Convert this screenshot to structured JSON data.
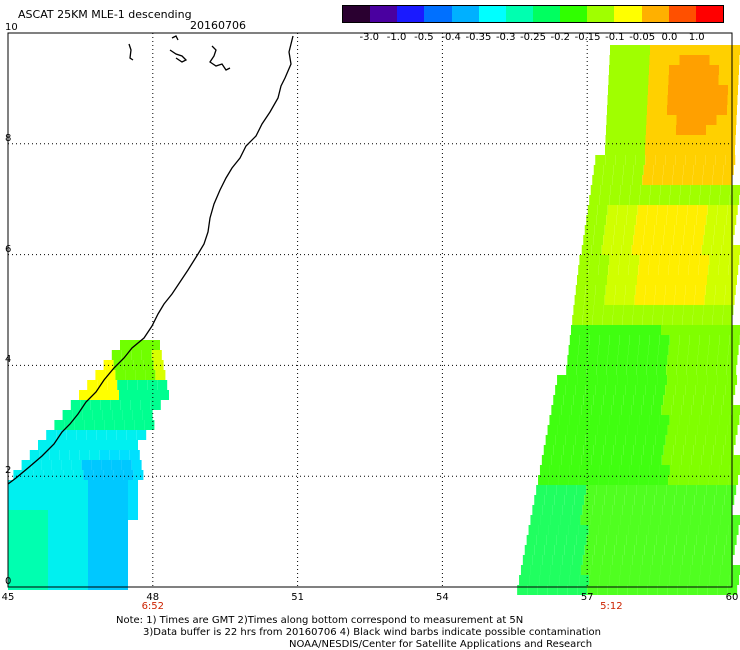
{
  "header": {
    "title": "ASCAT 25KM MLE-1 descending",
    "date": "20160706"
  },
  "colorbar": {
    "labels": [
      "-3.0",
      "-1.0",
      "-0.5",
      "-0.4",
      "-0.35",
      "-0.3",
      "-0.25",
      "-0.2",
      "-0.15",
      "-0.1",
      "-0.05",
      "0.0",
      "1.0"
    ],
    "colors": [
      "#2a0030",
      "#4a00a0",
      "#1a1aff",
      "#0070ff",
      "#00b0ff",
      "#00ffff",
      "#00ffb0",
      "#00ff60",
      "#30ff00",
      "#a0ff00",
      "#ffff00",
      "#ffb000",
      "#ff5000",
      "#ff0000"
    ]
  },
  "axes": {
    "x_ticks": [
      "45",
      "48",
      "51",
      "54",
      "57",
      "60"
    ],
    "y_ticks": [
      "0",
      "2",
      "4",
      "6",
      "8",
      "10"
    ],
    "x_range": [
      45,
      60
    ],
    "y_range": [
      0,
      10
    ]
  },
  "passes": [
    {
      "time": "6:52",
      "lon": 48
    },
    {
      "time": "5:12",
      "lon": 57.5
    }
  ],
  "notes": {
    "line1": "Note: 1) Times are GMT 2)Times along bottom correspond to measurement at 5N",
    "line2": "3)Data buffer is 22 hrs from 20160706 4) Black wind barbs indicate possible contamination",
    "line3": "NOAA/NESDIS/Center for Satellite Applications and Research"
  }
}
